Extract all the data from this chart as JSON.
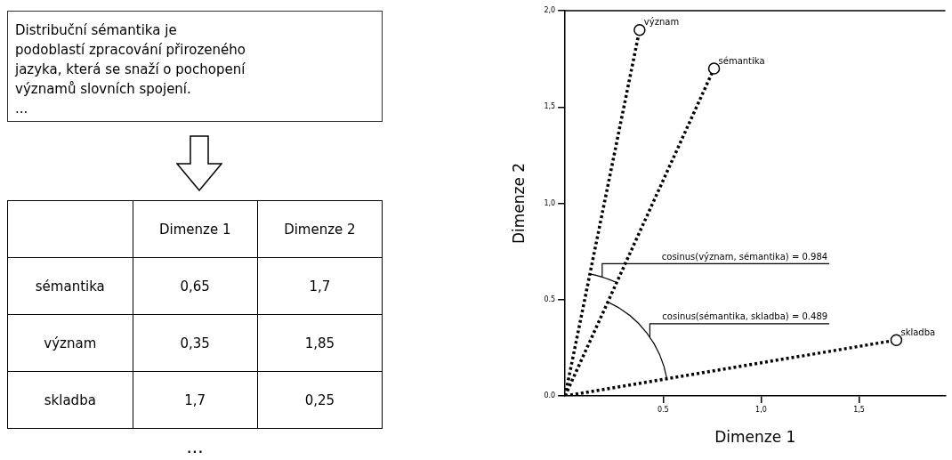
{
  "chart_data": [
    {
      "type": "other",
      "annotations": [
        "Distribuční sémantika je\npodoblastí zpracování přirozeného\njazyka, která se snaží o pochopení\nvýznamů slovních spojení.\n...",
        "..."
      ],
      "categories": [
        "Dimenze 1",
        "Dimenze 2"
      ],
      "y_categories": [
        "sémantika",
        "význam",
        "skladba"
      ],
      "cell_labels": [
        [
          "0,65",
          "1,7"
        ],
        [
          "0,35",
          "1,85"
        ],
        [
          "1,7",
          "0,25"
        ]
      ]
    },
    {
      "type": "line",
      "xlabel": "Dimenze 1",
      "ylabel": "Dimenze 2",
      "xlim": [
        0,
        1.94
      ],
      "ylim": [
        0,
        2
      ],
      "xticks": [
        0.5,
        {
          "value": 1,
          "label": "1,0"
        },
        {
          "value": 1.5,
          "label": "1,5"
        }
      ],
      "yticks": [
        {
          "value": 0,
          "label": "0.0"
        },
        0.5,
        {
          "value": 1,
          "label": "1,0"
        },
        {
          "value": 1.5,
          "label": "1,5"
        },
        {
          "value": 2,
          "label": "2,0"
        }
      ],
      "grid": false,
      "legend": false,
      "marker": "circle",
      "line_style": "dotted",
      "series": [
        {
          "name": "význam",
          "color": "#000000",
          "x": [
            0,
            0.38
          ],
          "values": [
            0,
            1.9
          ]
        },
        {
          "name": "sémantika",
          "color": "#000000",
          "x": [
            0,
            0.76
          ],
          "values": [
            0,
            1.7
          ]
        },
        {
          "name": "skladba",
          "color": "#000000",
          "x": [
            0,
            1.69
          ],
          "values": [
            0,
            0.29
          ]
        }
      ],
      "annotations": [
        "cosinus(význam, sémantika) = 0.984",
        "cosinus(sémantika, skladba) = 0.489"
      ]
    }
  ]
}
